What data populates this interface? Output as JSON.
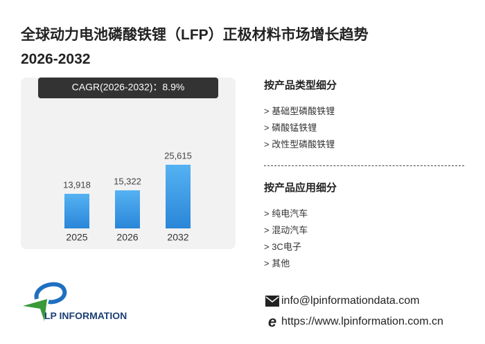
{
  "title": [
    "全球动力电池磷酸铁锂（LFP）正极材料市场增长趋势",
    "2026-2032"
  ],
  "chart_data": {
    "type": "bar",
    "annotation": "CAGR(2026-2032)：8.9%",
    "categories": [
      "2025",
      "2026",
      "2032"
    ],
    "values": [
      13918,
      15322,
      25615
    ],
    "value_labels": [
      "13,918",
      "15,322",
      "25,615"
    ],
    "color": "#2a86d8"
  },
  "segments": [
    {
      "heading": "按产品类型细分",
      "items": [
        "> 基础型磷酸铁锂",
        "> 磷酸锰铁锂",
        "> 改性型磷酸铁锂"
      ]
    },
    {
      "heading": "按产品应用细分",
      "items": [
        "> 纯电汽车",
        "> 混动汽车",
        "> 3C电子",
        "> 其他"
      ]
    }
  ],
  "contact": {
    "email": "info@lpinformationdata.com",
    "website": "https://www.lpinformation.com.cn"
  },
  "logo": "LP INFORMATION"
}
